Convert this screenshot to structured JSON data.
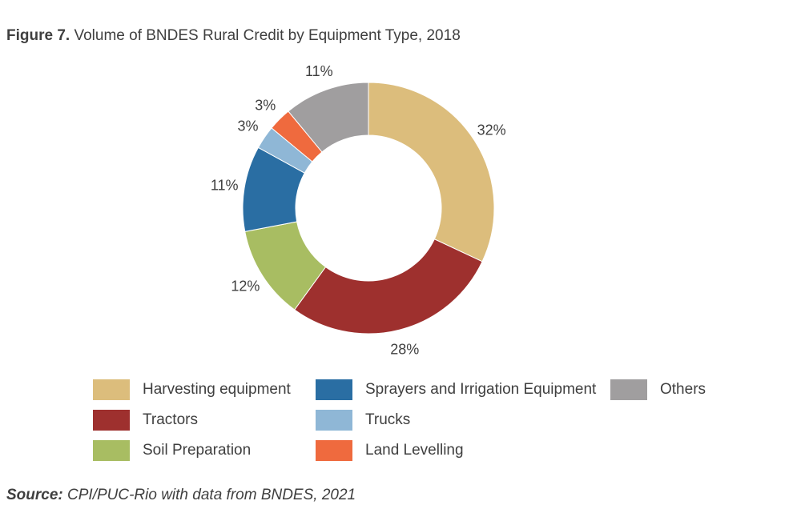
{
  "figure": {
    "label": "Figure 7.",
    "title": "Volume of BNDES Rural Credit by Equipment Type, 2018"
  },
  "source": {
    "label": "Source:",
    "text": "CPI/PUC-Rio with data from BNDES, 2021"
  },
  "chart_data": {
    "type": "pie",
    "variant": "donut",
    "unit": "%",
    "title": "Volume of BNDES Rural Credit by Equipment Type, 2018",
    "legend_placement": "bottom",
    "slices": [
      {
        "name": "Harvesting equipment",
        "value": 32,
        "label": "32%",
        "color": "#dcbd7c"
      },
      {
        "name": "Tractors",
        "value": 28,
        "label": "28%",
        "color": "#9e302e"
      },
      {
        "name": "Soil Preparation",
        "value": 12,
        "label": "12%",
        "color": "#a8bd62"
      },
      {
        "name": "Sprayers and Irrigation Equipment",
        "value": 11,
        "label": "11%",
        "color": "#2a6ea3"
      },
      {
        "name": "Trucks",
        "value": 3,
        "label": "3%",
        "color": "#8fb7d6"
      },
      {
        "name": "Land Levelling",
        "value": 3,
        "label": "3%",
        "color": "#ef6a3e"
      },
      {
        "name": "Others",
        "value": 11,
        "label": "11%",
        "color": "#a09e9f"
      }
    ]
  }
}
